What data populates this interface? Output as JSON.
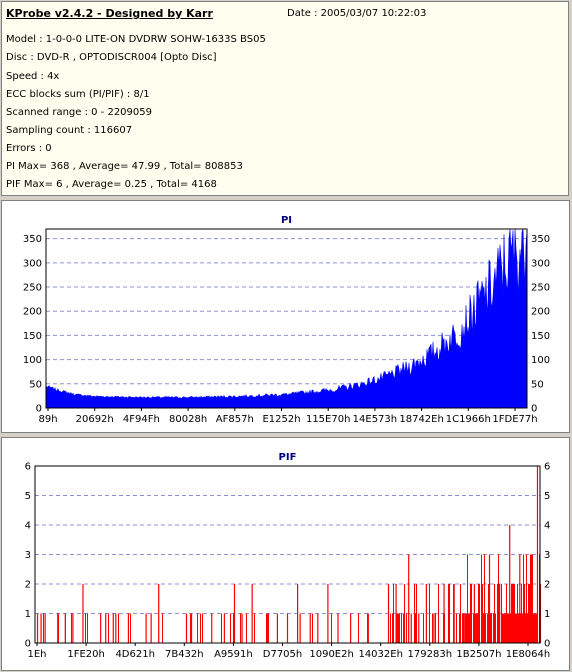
{
  "info": {
    "title": "KProbe v2.4.2 - Designed by Karr",
    "date": "Date : 2005/03/07 10:22:03",
    "lines": [
      "Model : 1-0-0-0 LITE-ON DVDRW SOHW-1633S BS05",
      "Disc : DVD-R , OPTODISCR004 [Opto Disc]",
      "Speed : 4x",
      "ECC blocks sum (PI/PIF) : 8/1",
      "Scanned range : 0 - 2209059",
      "Sampling count : 116607",
      "Errors : 0",
      "PI Max= 368 , Average= 47.99 , Total= 808853",
      "PIF Max= 6 , Average= 0.25 , Total= 4168"
    ]
  },
  "chart_data": [
    {
      "type": "area",
      "title": "PI",
      "color": "#0000ff",
      "title_color": "#000080",
      "ylim": [
        0,
        370
      ],
      "yticks": [
        0,
        50,
        100,
        150,
        200,
        250,
        300,
        350
      ],
      "xtick_labels": [
        "89h",
        "20692h",
        "4F94Fh",
        "80028h",
        "AF857h",
        "E1252h",
        "115E70h",
        "14E573h",
        "18742Eh",
        "1C1966h",
        "1FDE77h"
      ],
      "grid": true,
      "envelope_x_fraction": [
        0,
        0.02,
        0.06,
        0.1,
        0.2,
        0.3,
        0.4,
        0.5,
        0.6,
        0.65,
        0.7,
        0.75,
        0.8,
        0.85,
        0.88,
        0.9,
        0.93,
        0.95,
        0.97,
        0.99,
        1
      ],
      "envelope_values": [
        45,
        38,
        28,
        24,
        22,
        22,
        24,
        28,
        38,
        48,
        62,
        82,
        110,
        150,
        185,
        215,
        255,
        290,
        315,
        330,
        368
      ]
    },
    {
      "type": "bar",
      "title": "PIF",
      "color": "#ff0000",
      "title_color": "#000080",
      "ylim": [
        0,
        6
      ],
      "yticks": [
        0,
        1,
        2,
        3,
        4,
        5,
        6
      ],
      "xtick_labels": [
        "1Eh",
        "1FE20h",
        "4D621h",
        "7B432h",
        "A9591h",
        "D7705h",
        "1090E2h",
        "14032Eh",
        "179283h",
        "1B2507h",
        "1E8064h"
      ],
      "grid": true,
      "spike_x_fraction": [
        0.005,
        0.012,
        0.02,
        0.045,
        0.06,
        0.075,
        0.095,
        0.13,
        0.14,
        0.16,
        0.155,
        0.185,
        0.22,
        0.23,
        0.245,
        0.3,
        0.31,
        0.35,
        0.375,
        0.395,
        0.41,
        0.43,
        0.46,
        0.48,
        0.5,
        0.52,
        0.525,
        0.545,
        0.56,
        0.58,
        0.6,
        0.625,
        0.66,
        0.7,
        0.715,
        0.72,
        0.74,
        0.745,
        0.76,
        0.775,
        0.79,
        0.81,
        0.83,
        0.85,
        0.87,
        0.9,
        0.92,
        0.94,
        0.96,
        0.98,
        0.995
      ],
      "spike_values": [
        1,
        1,
        1,
        1,
        1,
        1,
        2,
        1,
        1,
        1,
        1,
        1,
        1,
        1,
        2,
        1,
        1,
        1,
        1,
        2,
        1,
        2,
        1,
        1,
        1,
        2,
        1,
        1,
        1,
        2,
        1,
        1,
        1,
        2,
        2,
        1,
        3,
        1,
        1,
        2,
        1,
        2,
        2,
        1,
        2,
        3,
        2,
        4,
        3,
        2,
        6
      ]
    }
  ]
}
